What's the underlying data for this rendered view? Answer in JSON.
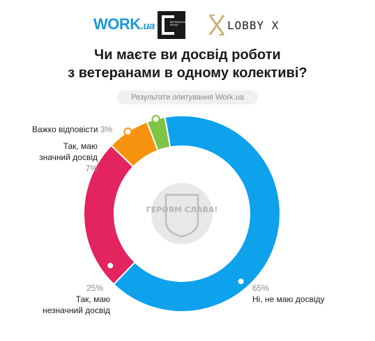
{
  "logos": {
    "work": "WORK",
    "work_suffix": ".ua",
    "fund_text": "ВЕТЕРАНСЬКИЙ ФОНД",
    "lobby": "LOBBY X"
  },
  "title_lines": [
    "Чи маєте ви досвід роботи",
    "з ветеранами в одному колективі?"
  ],
  "subtitle": "Результати опитування Work.ua",
  "center_emblem": "ГЕРОЯМ СЛАВА!",
  "colors": {
    "blue": "#0ea1ec",
    "pink": "#e3245f",
    "orange": "#f7930f",
    "green": "#7fc443",
    "subtitle_bg": "#f0f0f0",
    "emblem": "#dcdcdc"
  },
  "chart_data": {
    "type": "pie",
    "style": "donut",
    "title": "Чи маєте ви досвід роботи з ветеранами в одному колективі?",
    "subtitle": "Результати опитування Work.ua",
    "slices": [
      {
        "label": "Ні, не маю досвіду",
        "value": 65,
        "pct_text": "65%",
        "color": "#0ea1ec"
      },
      {
        "label": "Так, маю незначний досвід",
        "value": 25,
        "pct_text": "25%",
        "color": "#e3245f"
      },
      {
        "label": "Так, маю значний досвід",
        "value": 7,
        "pct_text": "7%",
        "color": "#f7930f"
      },
      {
        "label": "Важко відповісти",
        "value": 3,
        "pct_text": "3%",
        "color": "#7fc443"
      }
    ],
    "legend": "inline labels"
  }
}
